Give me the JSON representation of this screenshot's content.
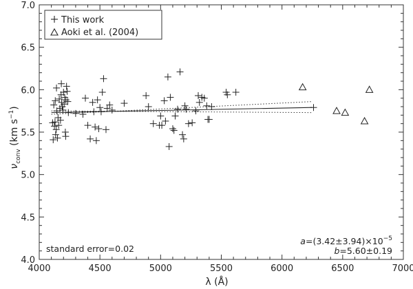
{
  "chart_data": {
    "type": "scatter",
    "xlabel": "λ (Å)",
    "ylabel": {
      "symbol": "ν",
      "subscript": "conv",
      "units": " (km s",
      "exp": "−1",
      "close": ")"
    },
    "xlim": [
      4000,
      7000
    ],
    "ylim": [
      4.0,
      7.0
    ],
    "x_ticks": [
      4000,
      4500,
      5000,
      5500,
      6000,
      6500,
      7000
    ],
    "x_tick_labels": [
      "4000",
      "4500",
      "5000",
      "5500",
      "6000",
      "6500",
      "7000"
    ],
    "y_ticks": [
      4.0,
      4.5,
      5.0,
      5.5,
      6.0,
      6.5,
      7.0
    ],
    "y_tick_labels": [
      "4.0",
      "4.5",
      "5.0",
      "5.5",
      "6.0",
      "6.5",
      "7.0"
    ],
    "grid": false,
    "legend": {
      "position": "top-left",
      "entries": [
        {
          "marker": "plus",
          "label": "This work"
        },
        {
          "marker": "triangle",
          "label": "Aoki et al. (2004)"
        }
      ]
    },
    "series": [
      {
        "name": "This work",
        "marker": "plus",
        "points": [
          [
            4110,
            5.61
          ],
          [
            4115,
            5.41
          ],
          [
            4120,
            5.82
          ],
          [
            4125,
            5.57
          ],
          [
            4130,
            5.62
          ],
          [
            4132,
            5.87
          ],
          [
            4135,
            5.47
          ],
          [
            4140,
            5.53
          ],
          [
            4142,
            6.02
          ],
          [
            4145,
            5.75
          ],
          [
            4150,
            5.43
          ],
          [
            4155,
            5.67
          ],
          [
            4160,
            5.58
          ],
          [
            4165,
            5.89
          ],
          [
            4170,
            5.78
          ],
          [
            4175,
            5.64
          ],
          [
            4180,
            5.94
          ],
          [
            4182,
            6.07
          ],
          [
            4185,
            5.85
          ],
          [
            4190,
            5.8
          ],
          [
            4195,
            5.76
          ],
          [
            4200,
            5.97
          ],
          [
            4205,
            5.83
          ],
          [
            4210,
            5.91
          ],
          [
            4215,
            5.5
          ],
          [
            4218,
            5.45
          ],
          [
            4220,
            5.88
          ],
          [
            4225,
            6.04
          ],
          [
            4230,
            5.98
          ],
          [
            4235,
            5.86
          ],
          [
            4240,
            5.73
          ],
          [
            4300,
            5.72
          ],
          [
            4360,
            5.71
          ],
          [
            4380,
            5.9
          ],
          [
            4400,
            5.58
          ],
          [
            4420,
            5.42
          ],
          [
            4440,
            5.85
          ],
          [
            4450,
            5.74
          ],
          [
            4460,
            5.56
          ],
          [
            4470,
            5.4
          ],
          [
            4480,
            5.88
          ],
          [
            4490,
            5.54
          ],
          [
            4500,
            5.79
          ],
          [
            4510,
            5.74
          ],
          [
            4520,
            5.97
          ],
          [
            4530,
            6.13
          ],
          [
            4550,
            5.53
          ],
          [
            4560,
            5.78
          ],
          [
            4580,
            5.82
          ],
          [
            4600,
            5.76
          ],
          [
            4700,
            5.84
          ],
          [
            4880,
            5.93
          ],
          [
            4900,
            5.8
          ],
          [
            4940,
            5.6
          ],
          [
            4990,
            5.58
          ],
          [
            5000,
            5.69
          ],
          [
            5010,
            5.58
          ],
          [
            5030,
            5.87
          ],
          [
            5040,
            5.63
          ],
          [
            5060,
            6.15
          ],
          [
            5070,
            5.33
          ],
          [
            5080,
            5.91
          ],
          [
            5100,
            5.54
          ],
          [
            5110,
            5.52
          ],
          [
            5120,
            5.69
          ],
          [
            5140,
            5.77
          ],
          [
            5160,
            6.21
          ],
          [
            5180,
            5.47
          ],
          [
            5190,
            5.42
          ],
          [
            5200,
            5.81
          ],
          [
            5210,
            5.77
          ],
          [
            5230,
            5.6
          ],
          [
            5260,
            5.61
          ],
          [
            5290,
            5.75
          ],
          [
            5310,
            5.93
          ],
          [
            5320,
            5.85
          ],
          [
            5340,
            5.91
          ],
          [
            5360,
            5.9
          ],
          [
            5380,
            5.81
          ],
          [
            5390,
            5.65
          ],
          [
            5400,
            5.65
          ],
          [
            5420,
            5.8
          ],
          [
            5540,
            5.97
          ],
          [
            5550,
            5.94
          ],
          [
            5620,
            5.97
          ],
          [
            6260,
            5.79
          ]
        ]
      },
      {
        "name": "Aoki et al. (2004)",
        "marker": "triangle",
        "points": [
          [
            6170,
            6.03
          ],
          [
            6450,
            5.75
          ],
          [
            6520,
            5.73
          ],
          [
            6680,
            5.63
          ],
          [
            6720,
            6.0
          ]
        ]
      }
    ],
    "fit_line": {
      "x_range": [
        4100,
        6250
      ],
      "y_start": 5.73,
      "y_end": 5.79
    },
    "confidence_bands": [
      {
        "x_range": [
          4100,
          6250
        ],
        "y_start": 5.71,
        "y_end": 5.86
      },
      {
        "x_range": [
          4100,
          6250
        ],
        "y_start": 5.75,
        "y_end": 5.73
      }
    ],
    "annotations": {
      "standard_error": "standard error=0.02",
      "fit_a": {
        "sym": "a",
        "text": "=(3.42±3.94)×10",
        "exp": "−5"
      },
      "fit_b": {
        "sym": "b",
        "text": "=5.60±0.19"
      }
    }
  }
}
